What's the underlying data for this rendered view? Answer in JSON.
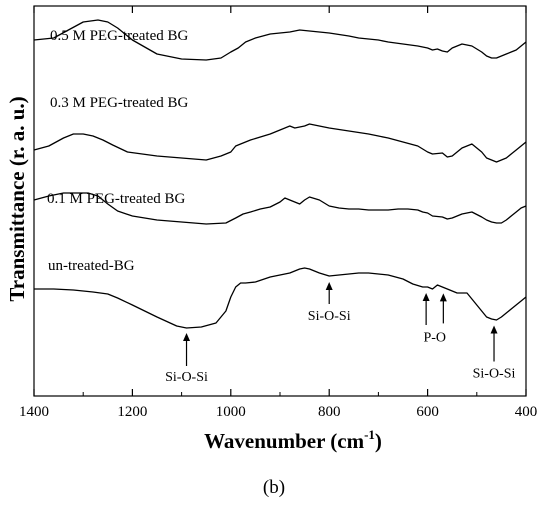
{
  "chart_data": {
    "type": "line",
    "title": "",
    "xlabel_main": "Wavenumber (cm",
    "xlabel_sup": "-1",
    "xlabel_close": ")",
    "ylabel": "Transmittance (r. a. u.)",
    "xlim": [
      1400,
      400
    ],
    "x_reversed": true,
    "x_ticks": [
      1400,
      1200,
      1000,
      800,
      600,
      400
    ],
    "y_ticks": "none",
    "grid": false,
    "legend": "none",
    "panel_label": "(b)",
    "series": [
      {
        "name": "0.5 M PEG-treated BG",
        "x": [
          1400,
          1360,
          1330,
          1300,
          1270,
          1250,
          1230,
          1200,
          1150,
          1100,
          1050,
          1020,
          1000,
          985,
          970,
          950,
          920,
          900,
          880,
          860,
          840,
          800,
          760,
          740,
          700,
          680,
          650,
          620,
          600,
          590,
          580,
          570,
          560,
          550,
          530,
          510,
          490,
          480,
          470,
          460,
          450,
          440,
          430,
          420,
          410,
          400
        ],
        "y": [
          40,
          42,
          50,
          58,
          60,
          58,
          52,
          40,
          26,
          21,
          20,
          22,
          28,
          32,
          38,
          42,
          46,
          47,
          48,
          50,
          49,
          47,
          44,
          42,
          40,
          38,
          36,
          34,
          32,
          30,
          31,
          29,
          28,
          32,
          36,
          34,
          28,
          24,
          22,
          22,
          24,
          26,
          28,
          30,
          34,
          38
        ]
      },
      {
        "name": "0.3 M PEG-treated BG",
        "x": [
          1400,
          1370,
          1340,
          1320,
          1300,
          1280,
          1260,
          1240,
          1210,
          1150,
          1100,
          1050,
          1020,
          1000,
          990,
          980,
          960,
          920,
          900,
          880,
          870,
          850,
          840,
          830,
          800,
          760,
          720,
          700,
          680,
          650,
          620,
          600,
          590,
          570,
          560,
          550,
          530,
          510,
          490,
          480,
          470,
          460,
          450,
          440,
          430,
          420,
          410,
          400
        ],
        "y": [
          30,
          34,
          42,
          46,
          46,
          44,
          40,
          35,
          28,
          24,
          22,
          20,
          24,
          28,
          34,
          36,
          40,
          46,
          50,
          54,
          52,
          54,
          56,
          55,
          52,
          49,
          46,
          44,
          42,
          38,
          34,
          28,
          26,
          27,
          23,
          24,
          32,
          36,
          28,
          22,
          20,
          18,
          20,
          22,
          26,
          30,
          34,
          38
        ]
      },
      {
        "name": "0.1 M PEG-treated BG",
        "x": [
          1400,
          1370,
          1340,
          1310,
          1290,
          1270,
          1250,
          1230,
          1200,
          1150,
          1100,
          1050,
          1010,
          990,
          975,
          960,
          940,
          920,
          900,
          890,
          880,
          860,
          850,
          840,
          820,
          800,
          780,
          760,
          740,
          720,
          700,
          680,
          660,
          640,
          620,
          610,
          600,
          590,
          570,
          560,
          550,
          530,
          510,
          490,
          480,
          470,
          460,
          450,
          440,
          430,
          420,
          410,
          400
        ],
        "y": [
          40,
          44,
          47,
          47,
          47,
          44,
          36,
          29,
          24,
          20,
          18,
          16,
          17,
          22,
          26,
          28,
          31,
          33,
          38,
          42,
          40,
          36,
          40,
          43,
          40,
          34,
          32,
          31,
          31,
          30,
          30,
          30,
          31,
          31,
          30,
          28,
          27,
          24,
          23,
          21,
          22,
          26,
          28,
          23,
          20,
          18,
          17,
          17,
          20,
          24,
          28,
          32,
          34
        ]
      },
      {
        "name": "un-treated-BG",
        "x": [
          1400,
          1360,
          1320,
          1280,
          1250,
          1230,
          1200,
          1150,
          1110,
          1090,
          1060,
          1030,
          1010,
          1000,
          990,
          980,
          970,
          950,
          920,
          900,
          880,
          860,
          850,
          840,
          820,
          800,
          780,
          760,
          740,
          720,
          700,
          680,
          650,
          630,
          610,
          600,
          590,
          580,
          560,
          540,
          520,
          500,
          480,
          470,
          460,
          450,
          440,
          430,
          410,
          400
        ],
        "y": [
          56,
          56,
          55,
          53,
          51,
          47,
          40,
          28,
          19,
          17,
          18,
          22,
          34,
          48,
          58,
          62,
          62,
          63,
          68,
          70,
          72,
          76,
          77,
          76,
          72,
          69,
          70,
          71,
          72,
          72,
          71,
          70,
          66,
          61,
          58,
          58,
          56,
          60,
          56,
          52,
          52,
          40,
          28,
          26,
          25,
          28,
          32,
          36,
          44,
          48
        ]
      }
    ],
    "annotations": [
      {
        "text": "Si-O-Si",
        "x": 1090
      },
      {
        "text": "Si-O-Si",
        "x": 800
      },
      {
        "text": "P-O",
        "x": 603,
        "x2": 568
      },
      {
        "text": "Si-O-Si",
        "x": 465
      }
    ]
  }
}
